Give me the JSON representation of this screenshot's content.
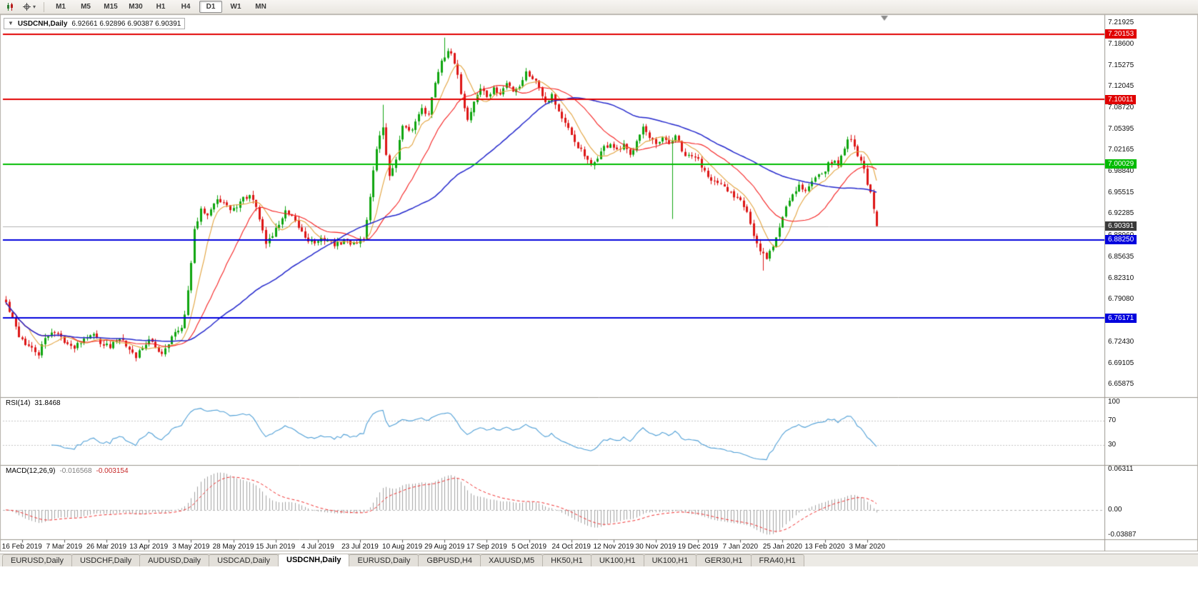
{
  "toolbar": {
    "icons": [
      "candlestick-chart-icon",
      "crosshair-icon"
    ],
    "timeframes": [
      "M1",
      "M5",
      "M15",
      "M30",
      "H1",
      "H4",
      "D1",
      "W1",
      "MN"
    ],
    "active_timeframe": "D1"
  },
  "icons": {
    "one_click": "▼",
    "dropdown": "▾"
  },
  "chart": {
    "title": "USDCNH,Daily",
    "ohlc_text": "6.92661 6.92896 6.90387 6.90391",
    "price_axis": {
      "ticks": [
        "7.21925",
        "7.18600",
        "7.15275",
        "7.12045",
        "7.08720",
        "7.05395",
        "7.02165",
        "6.98840",
        "6.95515",
        "6.92285",
        "6.88960",
        "6.85635",
        "6.82310",
        "6.79080",
        "6.75755",
        "6.72430",
        "6.69105",
        "6.65875"
      ]
    },
    "colors": {
      "bull": "#0fa50f",
      "bear": "#dd1616",
      "current_price_line": "#b0b0b0",
      "current_price_badge": "#3a3a3a"
    },
    "chart_data": {
      "type": "candlestick",
      "symbol": "USDCNH",
      "timeframe": "Daily",
      "ylim": [
        6.64,
        7.23
      ],
      "x_labels": [
        "16 Feb 2019",
        "7 Mar 2019",
        "26 Mar 2019",
        "13 Apr 2019",
        "3 May 2019",
        "28 May 2019",
        "15 Jun 2019",
        "4 Jul 2019",
        "23 Jul 2019",
        "10 Aug 2019",
        "29 Aug 2019",
        "17 Sep 2019",
        "5 Oct 2019",
        "24 Oct 2019",
        "12 Nov 2019",
        "30 Nov 2019",
        "19 Dec 2019",
        "7 Jan 2020",
        "25 Jan 2020",
        "13 Feb 2020",
        "3 Mar 2020"
      ],
      "candle_count": 269,
      "seed": 42,
      "noise": 0.01,
      "wick": 0.007,
      "price_path": [
        [
          0,
          6.785
        ],
        [
          2,
          6.758
        ],
        [
          4,
          6.735
        ],
        [
          6,
          6.722
        ],
        [
          8,
          6.712
        ],
        [
          10,
          6.706
        ],
        [
          12,
          6.728
        ],
        [
          14,
          6.742
        ],
        [
          16,
          6.735
        ],
        [
          18,
          6.728
        ],
        [
          20,
          6.715
        ],
        [
          22,
          6.722
        ],
        [
          24,
          6.732
        ],
        [
          26,
          6.738
        ],
        [
          28,
          6.73
        ],
        [
          30,
          6.722
        ],
        [
          32,
          6.715
        ],
        [
          34,
          6.728
        ],
        [
          36,
          6.732
        ],
        [
          38,
          6.712
        ],
        [
          40,
          6.702
        ],
        [
          42,
          6.718
        ],
        [
          44,
          6.726
        ],
        [
          46,
          6.716
        ],
        [
          48,
          6.708
        ],
        [
          50,
          6.725
        ],
        [
          52,
          6.738
        ],
        [
          54,
          6.742
        ],
        [
          56,
          6.8
        ],
        [
          58,
          6.895
        ],
        [
          60,
          6.935
        ],
        [
          62,
          6.922
        ],
        [
          64,
          6.938
        ],
        [
          66,
          6.945
        ],
        [
          68,
          6.932
        ],
        [
          70,
          6.93
        ],
        [
          72,
          6.942
        ],
        [
          74,
          6.95
        ],
        [
          76,
          6.944
        ],
        [
          78,
          6.915
        ],
        [
          80,
          6.878
        ],
        [
          82,
          6.89
        ],
        [
          84,
          6.908
        ],
        [
          86,
          6.925
        ],
        [
          88,
          6.915
        ],
        [
          90,
          6.902
        ],
        [
          92,
          6.888
        ],
        [
          94,
          6.88
        ],
        [
          96,
          6.878
        ],
        [
          98,
          6.885
        ],
        [
          100,
          6.878
        ],
        [
          102,
          6.875
        ],
        [
          104,
          6.882
        ],
        [
          106,
          6.878
        ],
        [
          108,
          6.88
        ],
        [
          110,
          6.885
        ],
        [
          112,
          6.948
        ],
        [
          114,
          7.025
        ],
        [
          116,
          7.058
        ],
        [
          118,
          6.978
        ],
        [
          120,
          7.012
        ],
        [
          122,
          7.058
        ],
        [
          124,
          7.048
        ],
        [
          126,
          7.065
        ],
        [
          128,
          7.09
        ],
        [
          130,
          7.075
        ],
        [
          132,
          7.128
        ],
        [
          134,
          7.162
        ],
        [
          136,
          7.178
        ],
        [
          138,
          7.155
        ],
        [
          140,
          7.112
        ],
        [
          142,
          7.068
        ],
        [
          144,
          7.098
        ],
        [
          146,
          7.118
        ],
        [
          148,
          7.105
        ],
        [
          150,
          7.115
        ],
        [
          152,
          7.108
        ],
        [
          154,
          7.125
        ],
        [
          156,
          7.115
        ],
        [
          158,
          7.122
        ],
        [
          160,
          7.142
        ],
        [
          162,
          7.135
        ],
        [
          164,
          7.12
        ],
        [
          166,
          7.098
        ],
        [
          168,
          7.108
        ],
        [
          170,
          7.082
        ],
        [
          172,
          7.062
        ],
        [
          174,
          7.042
        ],
        [
          176,
          7.028
        ],
        [
          178,
          7.012
        ],
        [
          180,
          6.995
        ],
        [
          182,
          7.012
        ],
        [
          184,
          7.025
        ],
        [
          186,
          7.032
        ],
        [
          188,
          7.018
        ],
        [
          190,
          7.028
        ],
        [
          192,
          7.012
        ],
        [
          194,
          7.04
        ],
        [
          196,
          7.058
        ],
        [
          198,
          7.038
        ],
        [
          200,
          7.028
        ],
        [
          202,
          7.038
        ],
        [
          204,
          7.03
        ],
        [
          206,
          7.045
        ],
        [
          208,
          7.018
        ],
        [
          210,
          7.01
        ],
        [
          212,
          7.012
        ],
        [
          214,
          6.998
        ],
        [
          216,
          6.985
        ],
        [
          218,
          6.972
        ],
        [
          220,
          6.965
        ],
        [
          222,
          6.958
        ],
        [
          224,
          6.952
        ],
        [
          226,
          6.948
        ],
        [
          228,
          6.928
        ],
        [
          230,
          6.888
        ],
        [
          232,
          6.862
        ],
        [
          234,
          6.856
        ],
        [
          236,
          6.872
        ],
        [
          238,
          6.902
        ],
        [
          240,
          6.935
        ],
        [
          242,
          6.955
        ],
        [
          244,
          6.968
        ],
        [
          246,
          6.958
        ],
        [
          248,
          6.972
        ],
        [
          250,
          6.988
        ],
        [
          252,
          6.992
        ],
        [
          254,
          7.005
        ],
        [
          256,
          6.998
        ],
        [
          258,
          7.028
        ],
        [
          260,
          7.042
        ],
        [
          262,
          7.015
        ],
        [
          264,
          6.992
        ],
        [
          266,
          6.952
        ],
        [
          268,
          6.904
        ]
      ],
      "long_wicks": [
        {
          "i": 116,
          "high": 7.092
        },
        {
          "i": 135,
          "high": 7.196
        },
        {
          "i": 205,
          "low": 6.915
        },
        {
          "i": 233,
          "low": 6.835
        }
      ],
      "last_ohlc": {
        "open": 6.92661,
        "high": 6.92896,
        "low": 6.90387,
        "close": 6.90391
      },
      "moving_averages": [
        {
          "name": "ma-fast",
          "period": 8,
          "color": "#e2a23c"
        },
        {
          "name": "ma-medium",
          "period": 21,
          "color": "#f52020"
        },
        {
          "name": "ma-slow",
          "period": 55,
          "color": "#2428cc"
        }
      ],
      "horizontal_lines": [
        {
          "label": "7.20153",
          "price": 7.20153,
          "color": "#e00000"
        },
        {
          "label": "7.10011",
          "price": 7.10011,
          "color": "#e00000"
        },
        {
          "label": "7.00029",
          "price": 7.00029,
          "color": "#00bb00"
        },
        {
          "label": "6.88250",
          "price": 6.8825,
          "color": "#0000dd"
        },
        {
          "label": "6.76171",
          "price": 6.76171,
          "color": "#0000dd"
        }
      ],
      "current_price": {
        "label": "6.90391",
        "price": 6.90391
      }
    }
  },
  "rsi_panel": {
    "label": "RSI(14)",
    "value": "31.8468",
    "period": 14,
    "levels": [
      "100",
      "70",
      "30"
    ],
    "level_values": [
      100,
      70,
      30
    ],
    "line_color": "#4f9fd6"
  },
  "macd_panel": {
    "label": "MACD(12,26,9)",
    "macd_value": "-0.016568",
    "signal_value": "-0.003154",
    "fast": 12,
    "slow": 26,
    "signal": 9,
    "axis_labels": [
      "0.06311",
      "0.00",
      "-0.03887"
    ],
    "axis_values": [
      0.06311,
      0,
      -0.03887
    ],
    "hist_color": "#a2a2a2",
    "signal_color": "#f03030"
  },
  "tabs": {
    "items": [
      "EURUSD,Daily",
      "USDCHF,Daily",
      "AUDUSD,Daily",
      "USDCAD,Daily",
      "USDCNH,Daily",
      "EURUSD,Daily",
      "GBPUSD,H4",
      "XAUUSD,M5",
      "HK50,H1",
      "UK100,H1",
      "UK100,H1",
      "GER30,H1",
      "FRA40,H1"
    ],
    "active_index": 4
  }
}
